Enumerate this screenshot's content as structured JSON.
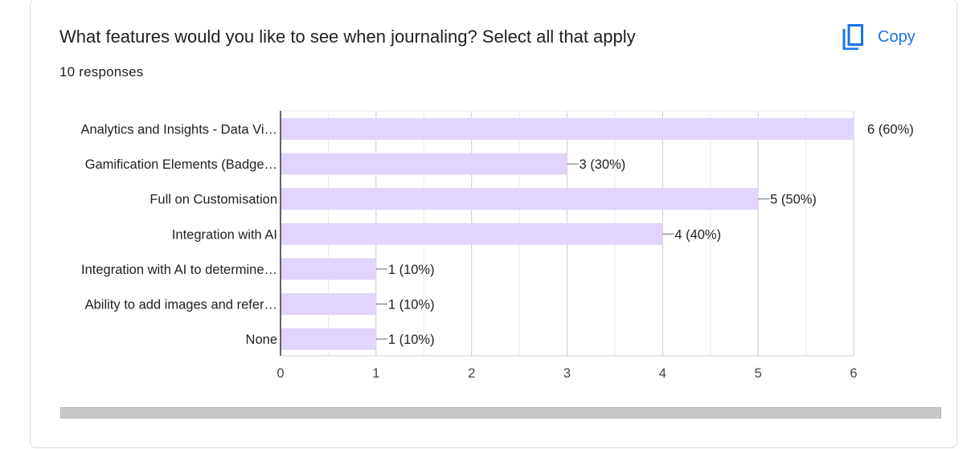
{
  "header": {
    "title": "What features would you like to see when journaling? Select all that apply",
    "responses": "10 responses",
    "copy_label": "Copy",
    "copy_icon": "copy-icon"
  },
  "colors": {
    "bar": "#e1d5fd",
    "accent": "#1a73e8",
    "grid": "#ebebeb",
    "axis": "#333333"
  },
  "chart_data": {
    "type": "bar",
    "orientation": "horizontal",
    "categories": [
      "Analytics and Insights - Data Vi…",
      "Gamification Elements (Badge…",
      "Full on Customisation",
      "Integration with AI",
      "Integration with AI to determine…",
      "Ability to add images and refer…",
      "None"
    ],
    "values": [
      6,
      3,
      5,
      4,
      1,
      1,
      1
    ],
    "data_labels": [
      "6 (60%)",
      "3 (30%)",
      "5 (50%)",
      "4 (40%)",
      "1 (10%)",
      "1 (10%)",
      "1 (10%)"
    ],
    "xlim": [
      0,
      6
    ],
    "xticks": [
      "0",
      "1",
      "2",
      "3",
      "4",
      "5",
      "6"
    ],
    "grid": true,
    "title": "",
    "xlabel": "",
    "ylabel": ""
  }
}
